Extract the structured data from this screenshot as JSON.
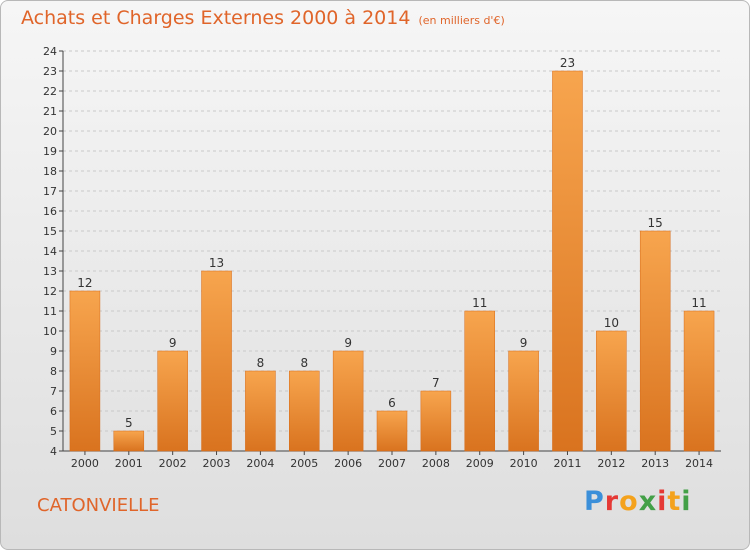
{
  "title": "Achats et Charges Externes 2000 à 2014",
  "unit": "(en milliers d'€)",
  "commune": "CATONVIELLE",
  "brand": {
    "letters": [
      "P",
      "r",
      "o",
      "x",
      "i",
      "t",
      "i"
    ],
    "colors": [
      "#3b8fd9",
      "#e53935",
      "#f4a21c",
      "#43a047",
      "#e53935",
      "#f4a21c",
      "#43a047"
    ]
  },
  "colors": {
    "title": "#e0652a",
    "bar_light": "#f7a54e",
    "bar_dark": "#d9731f"
  },
  "chart_data": {
    "type": "bar",
    "title": "Achats et Charges Externes 2000 à 2014",
    "subtitle": "(en milliers d'€)",
    "categories": [
      "2000",
      "2001",
      "2002",
      "2003",
      "2004",
      "2005",
      "2006",
      "2007",
      "2008",
      "2009",
      "2010",
      "2011",
      "2012",
      "2013",
      "2014"
    ],
    "values": [
      12,
      5,
      9,
      13,
      8,
      8,
      9,
      6,
      7,
      11,
      9,
      23,
      10,
      15,
      11
    ],
    "ylim": [
      4,
      24
    ],
    "yticks": [
      4,
      5,
      6,
      7,
      8,
      9,
      10,
      11,
      12,
      13,
      14,
      15,
      16,
      17,
      18,
      19,
      20,
      21,
      22,
      23,
      24
    ],
    "grid": true
  }
}
